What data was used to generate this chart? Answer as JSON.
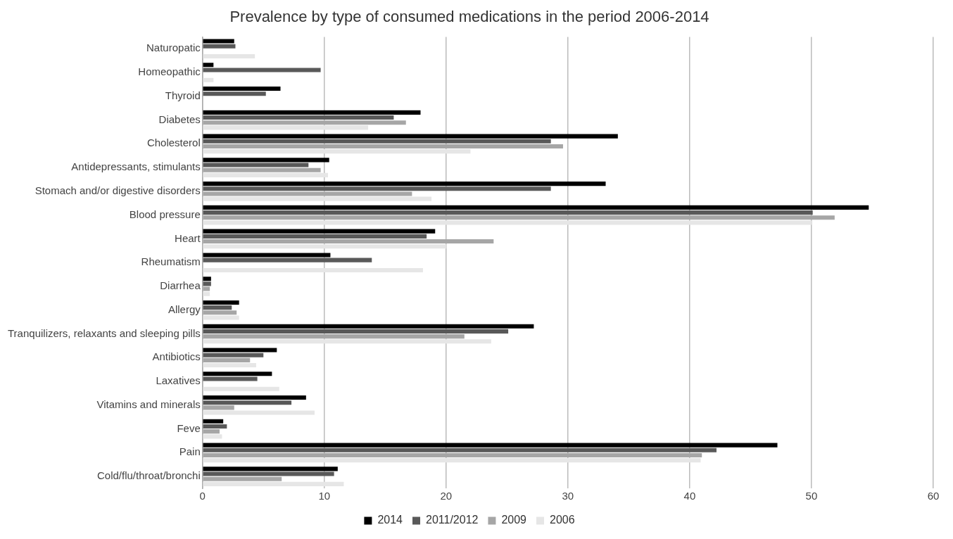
{
  "chart_data": {
    "type": "bar",
    "orientation": "horizontal",
    "title": "Prevalence by type of consumed medications in the period 2006-2014",
    "categories": [
      "Naturopatic",
      "Homeopathic",
      "Thyroid",
      "Diabetes",
      "Cholesterol",
      "Antidepressants, stimulants",
      "Stomach and/or digestive disorders",
      "Blood pressure",
      "Heart",
      "Rheumatism",
      "Diarrhea",
      "Allergy",
      "Tranquilizers, relaxants and sleeping pills",
      "Antibiotics",
      "Laxatives",
      "Vitamins and minerals",
      "Feve",
      "Pain",
      "Cold/flu/throat/bronchi"
    ],
    "series": [
      {
        "name": "2014",
        "color": "#000000",
        "values": [
          2.6,
          0.9,
          6.4,
          17.9,
          34.1,
          10.4,
          33.1,
          54.7,
          19.1,
          10.5,
          0.7,
          3.0,
          27.2,
          6.1,
          5.7,
          8.5,
          1.7,
          47.2,
          11.1
        ]
      },
      {
        "name": "2011/2012",
        "color": "#595959",
        "values": [
          2.7,
          9.7,
          5.2,
          15.7,
          28.6,
          8.7,
          28.6,
          50.1,
          18.4,
          13.9,
          0.7,
          2.4,
          25.1,
          5.0,
          4.5,
          7.3,
          2.0,
          42.2,
          10.8
        ]
      },
      {
        "name": "2009",
        "color": "#a6a6a6",
        "values": [
          null,
          null,
          null,
          16.7,
          29.6,
          9.7,
          17.2,
          51.9,
          23.9,
          null,
          0.6,
          2.8,
          21.5,
          3.9,
          null,
          2.6,
          1.4,
          41.0,
          6.5
        ]
      },
      {
        "name": "2006",
        "color": "#e6e6e6",
        "values": [
          4.3,
          0.9,
          null,
          13.6,
          22.0,
          10.3,
          18.8,
          50.0,
          20.0,
          18.1,
          0.6,
          3.0,
          23.7,
          4.4,
          6.3,
          9.2,
          1.6,
          40.9,
          11.6
        ]
      }
    ],
    "xlim": [
      0,
      60
    ],
    "xticks": [
      0,
      10,
      20,
      30,
      40,
      50,
      60
    ],
    "grid": "x",
    "legend": "bottom"
  }
}
